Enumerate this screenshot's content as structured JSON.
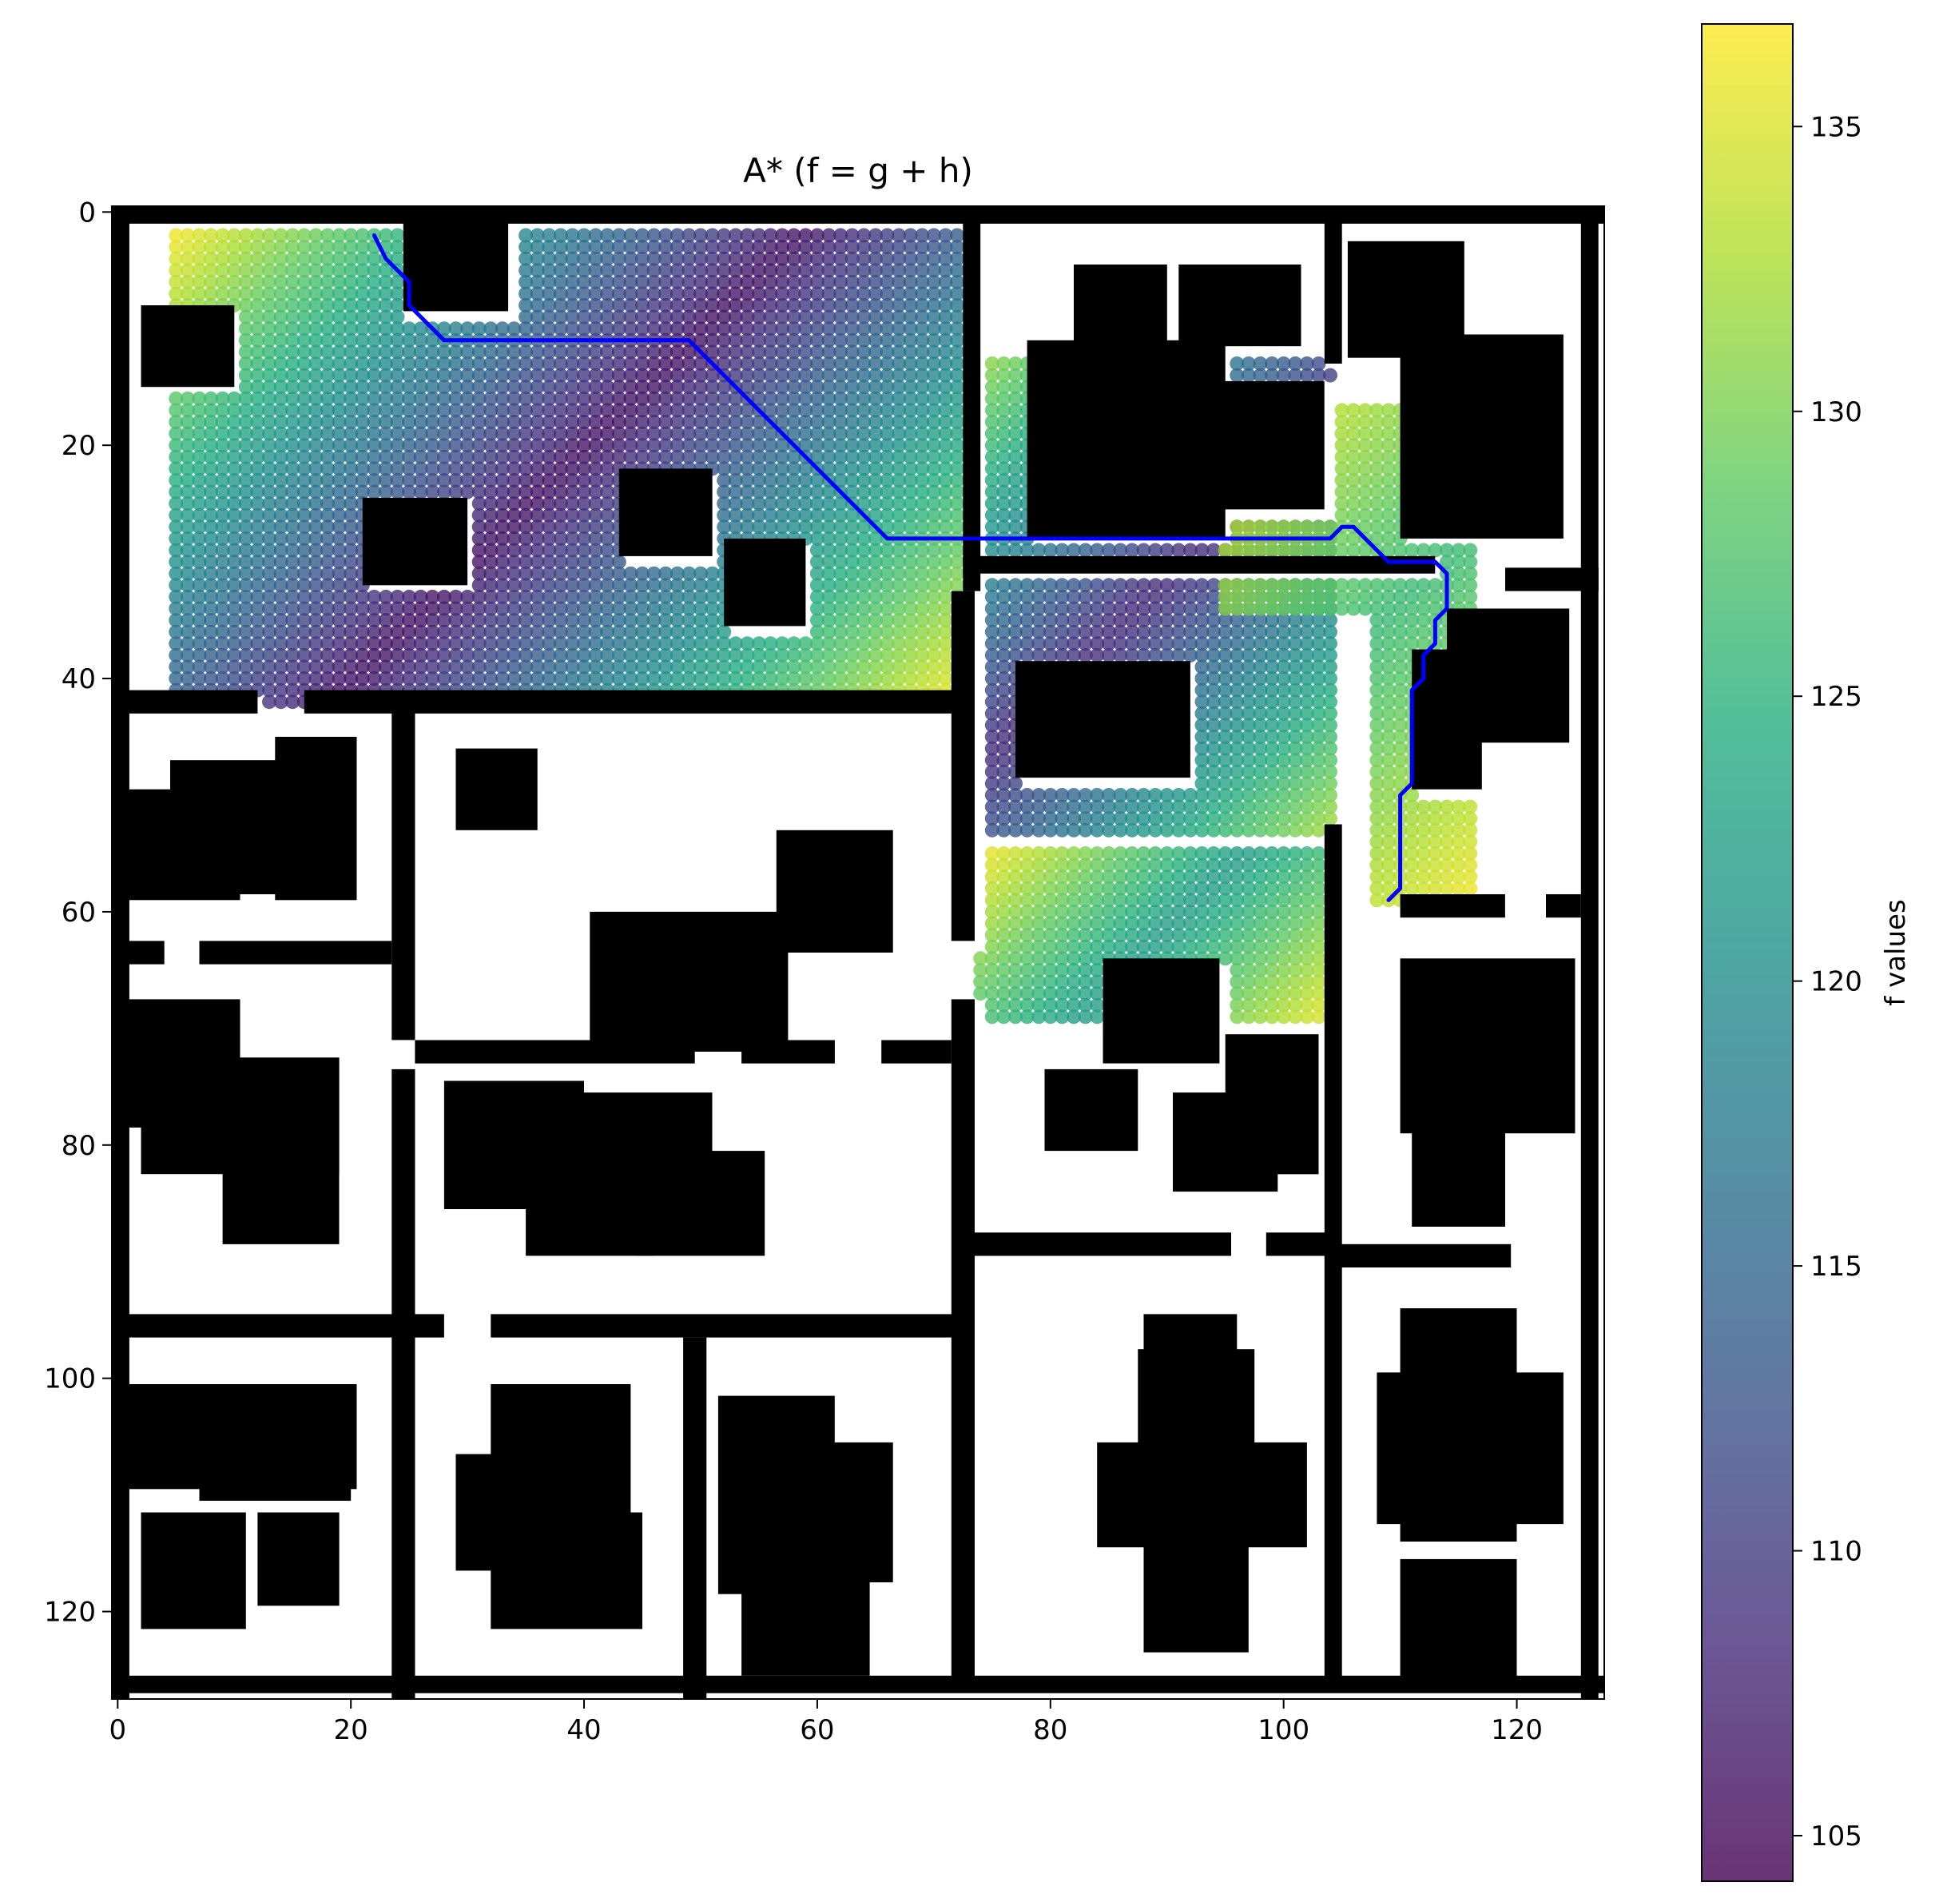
{
  "chart_data": {
    "type": "heatmap",
    "title": "A* (f = g + h)",
    "xlabel": "",
    "ylabel": "",
    "xlim": [
      -0.5,
      127.5
    ],
    "ylim": [
      127.5,
      -0.5
    ],
    "xticks": [
      0,
      20,
      40,
      60,
      80,
      100,
      120
    ],
    "yticks": [
      0,
      20,
      40,
      60,
      80,
      100,
      120
    ],
    "grid": false,
    "colormap": "viridis",
    "colorbar": {
      "label": "f values",
      "range": [
        104.2,
        136.8
      ],
      "ticks": [
        105,
        110,
        115,
        120,
        125,
        130,
        135
      ]
    },
    "obstacles": [
      [
        0,
        0,
        128,
        1.5
      ],
      [
        0,
        126,
        128,
        1.5
      ],
      [
        0,
        0,
        1.5,
        128
      ],
      [
        126,
        0,
        1.5,
        128
      ],
      [
        25,
        1,
        9,
        8
      ],
      [
        2.5,
        8.5,
        8,
        7
      ],
      [
        21.5,
        25,
        9,
        7.5
      ],
      [
        43.5,
        22.5,
        8,
        7.5
      ],
      [
        52.5,
        28.5,
        7,
        7.5
      ],
      [
        82.5,
        5,
        8,
        10.5
      ],
      [
        91.5,
        5,
        10.5,
        7
      ],
      [
        78.5,
        11.5,
        17,
        17
      ],
      [
        94.5,
        15,
        9.5,
        11
      ],
      [
        73,
        1,
        1.5,
        32
      ],
      [
        73,
        30,
        40.5,
        1.5
      ],
      [
        104,
        1,
        1.5,
        12.5
      ],
      [
        106,
        3,
        10,
        10
      ],
      [
        110.5,
        11,
        14,
        17.5
      ],
      [
        119.5,
        31,
        8,
        2
      ],
      [
        114.5,
        34.5,
        10.5,
        11.5
      ],
      [
        111.5,
        38,
        6,
        12
      ],
      [
        72,
        33,
        2,
        30
      ],
      [
        1,
        41.5,
        11.5,
        2
      ],
      [
        16.5,
        41.5,
        56,
        2
      ],
      [
        24,
        43,
        2,
        28.5
      ],
      [
        77.5,
        39,
        15,
        10
      ],
      [
        1,
        50,
        10,
        9.5
      ],
      [
        5,
        47.5,
        10,
        11.5
      ],
      [
        14,
        45.5,
        7,
        14
      ],
      [
        29.5,
        46.5,
        7,
        7
      ],
      [
        57,
        53.5,
        10,
        10.5
      ],
      [
        41,
        60.5,
        17,
        12
      ],
      [
        1,
        63,
        3.5,
        2
      ],
      [
        7.5,
        63,
        16.5,
        2
      ],
      [
        110.5,
        59,
        9,
        2
      ],
      [
        123,
        59,
        3,
        2
      ],
      [
        1,
        68,
        10,
        11
      ],
      [
        2.5,
        73,
        17,
        10
      ],
      [
        9.5,
        82,
        10,
        7
      ],
      [
        26,
        71.5,
        24,
        2
      ],
      [
        54,
        71.5,
        8,
        2
      ],
      [
        66,
        71.5,
        6,
        2
      ],
      [
        72,
        68,
        2,
        59
      ],
      [
        85,
        64.5,
        10,
        9
      ],
      [
        95.5,
        71,
        8,
        12
      ],
      [
        80,
        74,
        8,
        7
      ],
      [
        91,
        76,
        9,
        8.5
      ],
      [
        110.5,
        64.5,
        15,
        15
      ],
      [
        111.5,
        72,
        8,
        15.5
      ],
      [
        24,
        74,
        2,
        21.5
      ],
      [
        28.5,
        75,
        12,
        11
      ],
      [
        35.5,
        78,
        11,
        12
      ],
      [
        40.5,
        76,
        11,
        9
      ],
      [
        45,
        81,
        11,
        9
      ],
      [
        74,
        88,
        22,
        2
      ],
      [
        99,
        88,
        6,
        2
      ],
      [
        104,
        53,
        1.5,
        74
      ],
      [
        105,
        89,
        15,
        2
      ],
      [
        1,
        95,
        27.5,
        2
      ],
      [
        32.5,
        95,
        40,
        2
      ],
      [
        24,
        95,
        2,
        33
      ],
      [
        49,
        97,
        2,
        31
      ],
      [
        88.5,
        95,
        8,
        10
      ],
      [
        88,
        98,
        10,
        8
      ],
      [
        84.5,
        106,
        18,
        9
      ],
      [
        88.5,
        112,
        9,
        12
      ],
      [
        110.5,
        94.5,
        10,
        20
      ],
      [
        108.5,
        100,
        16,
        13
      ],
      [
        1,
        101,
        20,
        9
      ],
      [
        7.5,
        106,
        13,
        5
      ],
      [
        2.5,
        112,
        9,
        10
      ],
      [
        12.5,
        112,
        7,
        8
      ],
      [
        32.5,
        101,
        12,
        12
      ],
      [
        29.5,
        107,
        12,
        10
      ],
      [
        32.5,
        112,
        13,
        10
      ],
      [
        52,
        102,
        10,
        17
      ],
      [
        57,
        106,
        10,
        12
      ],
      [
        54,
        116,
        11,
        10
      ],
      [
        110.5,
        116,
        10,
        11
      ]
    ],
    "explored_regions": [
      {
        "cells": [
          [
            5,
            2,
            72,
            42
          ],
          [
            26,
            9,
            46,
            33
          ]
        ],
        "f_range": [
          106,
          136
        ]
      },
      {
        "cells": [
          [
            73.5,
            12.5,
            104,
            53
          ]
        ],
        "f_range": [
          108,
          132
        ]
      },
      {
        "cells": [
          [
            74,
            55,
            105,
            69
          ]
        ],
        "f_range": [
          122,
          136
        ]
      },
      {
        "cells": [
          [
            95,
            17,
            116,
            34
          ],
          [
            108,
            30,
            116,
            59
          ]
        ],
        "f_range": [
          126,
          136
        ]
      }
    ],
    "path": {
      "color": "#0000ff",
      "x": [
        22,
        23,
        24,
        25,
        25,
        26,
        28,
        49,
        66,
        104,
        105,
        106,
        108,
        109,
        113,
        114,
        114,
        113,
        113,
        112,
        112,
        111,
        111,
        110,
        110,
        109
      ],
      "y": [
        2,
        4,
        5,
        6,
        8,
        9,
        11,
        11,
        28,
        28,
        27,
        27,
        29,
        30,
        30,
        31,
        34,
        35,
        37,
        38,
        40,
        41,
        49,
        50,
        58,
        59
      ]
    }
  }
}
